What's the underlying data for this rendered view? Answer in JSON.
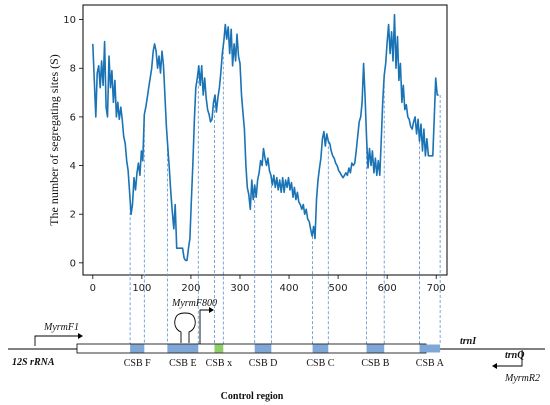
{
  "chart_data": {
    "type": "line",
    "ylabel": "The number of segregating sites (S)",
    "xlabel": "",
    "xlim": [
      -20,
      722
    ],
    "ylim": [
      -0.5,
      10.6
    ],
    "x_ticks": [
      0,
      100,
      200,
      300,
      400,
      500,
      600,
      700
    ],
    "y_ticks": [
      0,
      2,
      4,
      6,
      8,
      10
    ],
    "series_color": "#1a73b5",
    "series": [
      {
        "points": [
          [
            0,
            9.0
          ],
          [
            3,
            7.5
          ],
          [
            6,
            6.0
          ],
          [
            9,
            7.8
          ],
          [
            12,
            8.1
          ],
          [
            15,
            7.2
          ],
          [
            18,
            8.3
          ],
          [
            21,
            7.3
          ],
          [
            24,
            9.1
          ],
          [
            27,
            6.4
          ],
          [
            30,
            6.0
          ],
          [
            33,
            8.5
          ],
          [
            36,
            7.2
          ],
          [
            39,
            7.9
          ],
          [
            42,
            6.6
          ],
          [
            45,
            7.5
          ],
          [
            48,
            6.0
          ],
          [
            51,
            6.6
          ],
          [
            54,
            5.9
          ],
          [
            57,
            6.4
          ],
          [
            60,
            5.9
          ],
          [
            63,
            5.2
          ],
          [
            66,
            4.9
          ],
          [
            69,
            4.2
          ],
          [
            72,
            3.8
          ],
          [
            75,
            2.9
          ],
          [
            78,
            2.0
          ],
          [
            81,
            2.4
          ],
          [
            84,
            3.5
          ],
          [
            87,
            3.0
          ],
          [
            90,
            3.7
          ],
          [
            93,
            4.1
          ],
          [
            96,
            3.6
          ],
          [
            99,
            4.6
          ],
          [
            102,
            4.2
          ],
          [
            105,
            6.1
          ],
          [
            108,
            6.4
          ],
          [
            111,
            6.8
          ],
          [
            114,
            7.2
          ],
          [
            117,
            7.6
          ],
          [
            120,
            8.0
          ],
          [
            123,
            8.7
          ],
          [
            126,
            9.0
          ],
          [
            129,
            8.7
          ],
          [
            132,
            8.0
          ],
          [
            135,
            8.5
          ],
          [
            138,
            7.8
          ],
          [
            141,
            8.7
          ],
          [
            144,
            8.1
          ],
          [
            147,
            6.9
          ],
          [
            150,
            5.6
          ],
          [
            153,
            4.7
          ],
          [
            156,
            3.9
          ],
          [
            159,
            2.9
          ],
          [
            162,
            2.1
          ],
          [
            165,
            1.4
          ],
          [
            168,
            2.4
          ],
          [
            171,
            0.6
          ],
          [
            174,
            0.6
          ],
          [
            177,
            0.6
          ],
          [
            180,
            0.6
          ],
          [
            183,
            0.6
          ],
          [
            186,
            0.2
          ],
          [
            189,
            0.1
          ],
          [
            192,
            0.1
          ],
          [
            195,
            0.6
          ],
          [
            198,
            1.0
          ],
          [
            201,
            2.6
          ],
          [
            204,
            4.1
          ],
          [
            207,
            5.9
          ],
          [
            210,
            7.2
          ],
          [
            213,
            7.6
          ],
          [
            216,
            8.1
          ],
          [
            219,
            7.3
          ],
          [
            222,
            8.1
          ],
          [
            225,
            6.9
          ],
          [
            228,
            7.6
          ],
          [
            231,
            6.8
          ],
          [
            234,
            6.3
          ],
          [
            237,
            6.1
          ],
          [
            240,
            5.8
          ],
          [
            243,
            5.9
          ],
          [
            246,
            6.6
          ],
          [
            249,
            6.9
          ],
          [
            252,
            6.2
          ],
          [
            255,
            6.8
          ],
          [
            258,
            7.2
          ],
          [
            261,
            7.8
          ],
          [
            264,
            8.6
          ],
          [
            267,
            9.1
          ],
          [
            270,
            9.8
          ],
          [
            273,
            9.2
          ],
          [
            276,
            9.7
          ],
          [
            279,
            8.6
          ],
          [
            282,
            9.6
          ],
          [
            285,
            8.1
          ],
          [
            288,
            9.0
          ],
          [
            291,
            8.3
          ],
          [
            294,
            9.4
          ],
          [
            297,
            8.5
          ],
          [
            300,
            8.2
          ],
          [
            303,
            6.9
          ],
          [
            306,
            6.2
          ],
          [
            309,
            5.5
          ],
          [
            312,
            4.0
          ],
          [
            315,
            3.1
          ],
          [
            318,
            2.8
          ],
          [
            321,
            2.2
          ],
          [
            324,
            3.4
          ],
          [
            327,
            2.6
          ],
          [
            330,
            3.2
          ],
          [
            333,
            2.7
          ],
          [
            336,
            3.4
          ],
          [
            339,
            3.7
          ],
          [
            342,
            4.2
          ],
          [
            345,
            4.0
          ],
          [
            348,
            4.7
          ],
          [
            351,
            4.3
          ],
          [
            354,
            4.0
          ],
          [
            357,
            4.3
          ],
          [
            360,
            3.8
          ],
          [
            363,
            3.6
          ],
          [
            366,
            3.2
          ],
          [
            369,
            3.6
          ],
          [
            372,
            3.1
          ],
          [
            375,
            3.5
          ],
          [
            378,
            3.0
          ],
          [
            381,
            3.4
          ],
          [
            384,
            2.9
          ],
          [
            387,
            3.5
          ],
          [
            390,
            2.9
          ],
          [
            393,
            3.4
          ],
          [
            396,
            3.1
          ],
          [
            399,
            3.5
          ],
          [
            402,
            3.0
          ],
          [
            405,
            3.3
          ],
          [
            408,
            2.7
          ],
          [
            411,
            3.1
          ],
          [
            414,
            2.6
          ],
          [
            417,
            2.9
          ],
          [
            420,
            2.5
          ],
          [
            423,
            2.4
          ],
          [
            426,
            2.2
          ],
          [
            429,
            2.4
          ],
          [
            432,
            2.0
          ],
          [
            435,
            2.2
          ],
          [
            438,
            1.8
          ],
          [
            441,
            1.7
          ],
          [
            444,
            1.4
          ],
          [
            447,
            1.1
          ],
          [
            450,
            1.5
          ],
          [
            453,
            1.0
          ],
          [
            456,
            2.6
          ],
          [
            459,
            3.4
          ],
          [
            462,
            3.9
          ],
          [
            465,
            4.3
          ],
          [
            468,
            5.1
          ],
          [
            471,
            5.4
          ],
          [
            474,
            4.8
          ],
          [
            477,
            5.3
          ],
          [
            480,
            5.0
          ],
          [
            483,
            4.9
          ],
          [
            486,
            4.6
          ],
          [
            489,
            4.4
          ],
          [
            492,
            4.3
          ],
          [
            495,
            4.1
          ],
          [
            498,
            4.0
          ],
          [
            501,
            3.8
          ],
          [
            504,
            3.7
          ],
          [
            507,
            3.6
          ],
          [
            510,
            3.5
          ],
          [
            513,
            3.6
          ],
          [
            516,
            3.7
          ],
          [
            519,
            3.6
          ],
          [
            522,
            3.9
          ],
          [
            525,
            3.7
          ],
          [
            528,
            4.1
          ],
          [
            531,
            4.0
          ],
          [
            534,
            4.1
          ],
          [
            537,
            4.6
          ],
          [
            540,
            5.2
          ],
          [
            543,
            5.8
          ],
          [
            546,
            6.0
          ],
          [
            549,
            6.6
          ],
          [
            552,
            8.2
          ],
          [
            555,
            6.8
          ],
          [
            558,
            5.2
          ],
          [
            561,
            3.9
          ],
          [
            564,
            4.7
          ],
          [
            567,
            4.0
          ],
          [
            570,
            4.6
          ],
          [
            573,
            3.7
          ],
          [
            576,
            4.3
          ],
          [
            579,
            3.6
          ],
          [
            582,
            4.2
          ],
          [
            585,
            3.6
          ],
          [
            588,
            5.1
          ],
          [
            591,
            6.6
          ],
          [
            594,
            7.7
          ],
          [
            597,
            8.2
          ],
          [
            600,
            9.1
          ],
          [
            603,
            9.8
          ],
          [
            606,
            8.6
          ],
          [
            609,
            9.5
          ],
          [
            612,
            8.3
          ],
          [
            615,
            10.2
          ],
          [
            618,
            8.0
          ],
          [
            621,
            9.3
          ],
          [
            624,
            7.5
          ],
          [
            627,
            8.2
          ],
          [
            630,
            6.6
          ],
          [
            633,
            7.3
          ],
          [
            636,
            6.3
          ],
          [
            639,
            6.5
          ],
          [
            642,
            6.0
          ],
          [
            645,
            5.9
          ],
          [
            648,
            5.6
          ],
          [
            651,
            5.5
          ],
          [
            654,
            5.8
          ],
          [
            657,
            6.0
          ],
          [
            660,
            5.3
          ],
          [
            663,
            5.9
          ],
          [
            666,
            5.0
          ],
          [
            669,
            5.7
          ],
          [
            672,
            4.6
          ],
          [
            675,
            5.5
          ],
          [
            678,
            4.4
          ],
          [
            681,
            5.1
          ],
          [
            684,
            4.4
          ],
          [
            687,
            4.4
          ],
          [
            690,
            4.4
          ],
          [
            693,
            4.4
          ],
          [
            696,
            5.9
          ],
          [
            699,
            7.6
          ],
          [
            702,
            6.9
          ],
          [
            705,
            6.9
          ]
        ]
      }
    ],
    "dashed_guides": [
      76,
      105,
      152,
      215,
      248,
      266,
      330,
      364,
      448,
      480,
      558,
      594,
      666,
      708
    ]
  },
  "diagram": {
    "csb_blocks": [
      {
        "label": "CSB F",
        "start": 76,
        "end": 105,
        "color": "#7ea7d8"
      },
      {
        "label": "CSB E",
        "start": 152,
        "end": 215,
        "color": "#7ea7d8"
      },
      {
        "label": "CSB x",
        "start": 248,
        "end": 266,
        "color": "#8fcf6a"
      },
      {
        "label": "CSB D",
        "start": 330,
        "end": 364,
        "color": "#7ea7d8"
      },
      {
        "label": "CSB C",
        "start": 448,
        "end": 480,
        "color": "#7ea7d8"
      },
      {
        "label": "CSB B",
        "start": 558,
        "end": 594,
        "color": "#7ea7d8"
      },
      {
        "label": "CSB A",
        "start": 666,
        "end": 708,
        "color": "#7ea7d8"
      }
    ],
    "label_12s": "12S rRNA",
    "label_trni": "trnI",
    "label_trnq": "trnQ",
    "label_control": "Control region",
    "primer_f1": "MyrmF1",
    "primer_f800": "MyrmF800",
    "primer_r2": "MyrmR2"
  }
}
